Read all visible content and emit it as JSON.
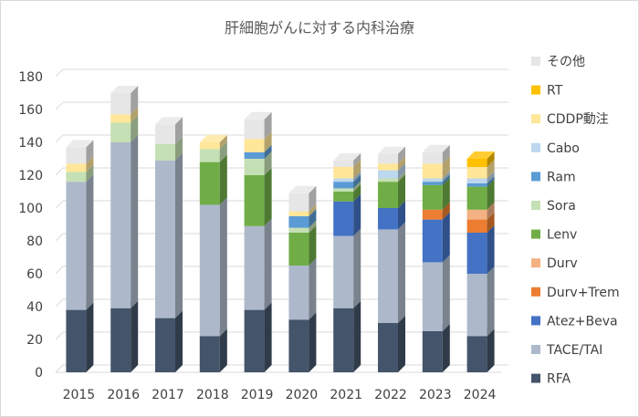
{
  "chart_data": {
    "type": "bar",
    "stacked": true,
    "style": "3d-stacked-column",
    "title": "肝細胞がんに対する内科治療",
    "xlabel": "",
    "ylabel": "",
    "categories": [
      "2015",
      "2016",
      "2017",
      "2018",
      "2019",
      "2020",
      "2021",
      "2022",
      "2023",
      "2024"
    ],
    "ylim": [
      0,
      180
    ],
    "yticks": [
      0,
      20,
      40,
      60,
      80,
      100,
      120,
      140,
      160,
      180
    ],
    "grid": true,
    "legend_position": "right",
    "series": [
      {
        "name": "RFA",
        "color": "#44546a",
        "values": [
          38,
          39,
          33,
          22,
          38,
          32,
          39,
          30,
          25,
          22
        ]
      },
      {
        "name": "TACE/TAI",
        "color": "#adb9ca",
        "values": [
          78,
          101,
          96,
          80,
          51,
          33,
          44,
          57,
          42,
          38
        ]
      },
      {
        "name": "Atez+Beva",
        "color": "#4472c4",
        "values": [
          0,
          0,
          0,
          0,
          0,
          0,
          21,
          13,
          26,
          25
        ]
      },
      {
        "name": "Durv+Trem",
        "color": "#ed7d31",
        "values": [
          0,
          0,
          0,
          0,
          0,
          0,
          0,
          0,
          6,
          8
        ]
      },
      {
        "name": "Durv",
        "color": "#f4b183",
        "values": [
          0,
          0,
          0,
          0,
          0,
          0,
          0,
          0,
          0,
          6
        ]
      },
      {
        "name": "Lenv",
        "color": "#70ad47",
        "values": [
          0,
          0,
          0,
          26,
          31,
          20,
          6,
          16,
          15,
          14
        ]
      },
      {
        "name": "Sora",
        "color": "#c5e0b4",
        "values": [
          6,
          12,
          10,
          8,
          10,
          3,
          2,
          2,
          0,
          0
        ]
      },
      {
        "name": "Ram",
        "color": "#5b9bd5",
        "values": [
          0,
          0,
          0,
          0,
          4,
          7,
          4,
          0,
          2,
          2
        ]
      },
      {
        "name": "Cabo",
        "color": "#bdd7ee",
        "values": [
          0,
          0,
          0,
          0,
          0,
          0,
          2,
          5,
          2,
          3
        ]
      },
      {
        "name": "CDDP動注",
        "color": "#ffe699",
        "values": [
          5,
          5,
          0,
          4,
          8,
          3,
          7,
          4,
          9,
          7
        ]
      },
      {
        "name": "RT",
        "color": "#ffc000",
        "values": [
          0,
          0,
          0,
          0,
          0,
          0,
          0,
          0,
          0,
          5
        ]
      },
      {
        "name": "その他",
        "color": "#e7e6e6",
        "values": [
          10,
          13,
          12,
          0,
          12,
          11,
          4,
          6,
          7,
          0
        ]
      }
    ]
  }
}
